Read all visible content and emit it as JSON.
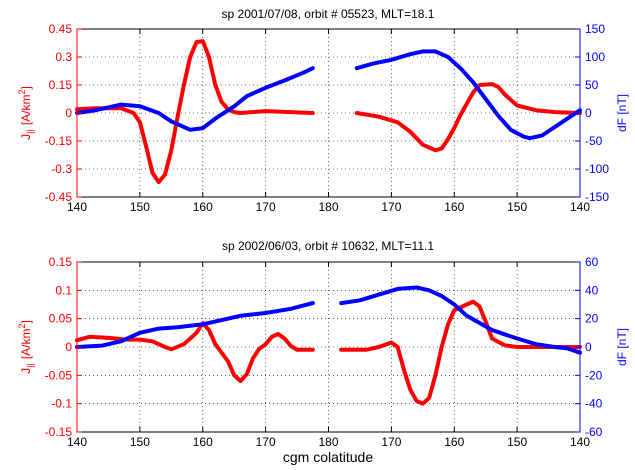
{
  "chart_data": [
    {
      "type": "line",
      "title": "sp 2001/07/08,  orbit # 05523, MLT=18.1",
      "xlabel": "",
      "ylabel_left": "J",
      "ylabel_left_sub": "||",
      "ylabel_left_unit_base": "[A/km",
      "ylabel_left_unit_sup": "2",
      "ylabel_left_unit_end": "]",
      "ylabel_right": "dF [nT]",
      "grid": "dotted",
      "x_ticks": [
        "140",
        "150",
        "160",
        "170",
        "180",
        "170",
        "160",
        "150",
        "140"
      ],
      "ylim_left": [
        -0.45,
        0.45
      ],
      "yticks_left": [
        "0.45",
        "0.3",
        "0.15",
        "0",
        "-0.15",
        "-0.3",
        "-0.45"
      ],
      "ylim_right": [
        -150,
        150
      ],
      "yticks_right": [
        "150",
        "100",
        "50",
        "0",
        "-50",
        "-100",
        "-150"
      ],
      "left_color": "#ff0000",
      "right_color": "#0000ff",
      "series": [
        {
          "axis": "left",
          "color": "#ff0000",
          "segments": [
            [
              [
                140,
                0.02
              ],
              [
                143,
                0.025
              ],
              [
                147,
                0.025
              ],
              [
                149,
                0.0
              ],
              [
                150,
                -0.05
              ],
              [
                151,
                -0.18
              ],
              [
                152,
                -0.32
              ],
              [
                153,
                -0.37
              ],
              [
                154,
                -0.33
              ],
              [
                155,
                -0.2
              ],
              [
                156,
                -0.02
              ],
              [
                157,
                0.15
              ],
              [
                158,
                0.3
              ],
              [
                159,
                0.38
              ],
              [
                160,
                0.385
              ],
              [
                161,
                0.3
              ],
              [
                162,
                0.15
              ],
              [
                163,
                0.06
              ],
              [
                164,
                0.02
              ],
              [
                165,
                0.005
              ],
              [
                166,
                0.0
              ],
              [
                170,
                0.01
              ],
              [
                174,
                0.005
              ],
              [
                177.5,
                0.0
              ]
            ],
            [
              [
                184.5,
                0.0
              ],
              [
                188,
                -0.02
              ],
              [
                191,
                -0.05
              ],
              [
                193,
                -0.1
              ],
              [
                195,
                -0.17
              ],
              [
                197,
                -0.2
              ],
              [
                198,
                -0.19
              ],
              [
                199,
                -0.14
              ],
              [
                200,
                -0.08
              ],
              [
                201,
                -0.01
              ],
              [
                202,
                0.05
              ],
              [
                203,
                0.11
              ],
              [
                204,
                0.15
              ],
              [
                206,
                0.155
              ],
              [
                207,
                0.14
              ],
              [
                208,
                0.1
              ],
              [
                210,
                0.04
              ],
              [
                213,
                0.015
              ],
              [
                216,
                0.005
              ],
              [
                220,
                0.0
              ]
            ]
          ]
        },
        {
          "axis": "right",
          "color": "#0000ff",
          "segments": [
            [
              [
                140,
                0
              ],
              [
                143,
                5
              ],
              [
                147,
                15
              ],
              [
                150,
                12
              ],
              [
                153,
                0
              ],
              [
                155,
                -15
              ],
              [
                158,
                -30
              ],
              [
                160,
                -27
              ],
              [
                162,
                -10
              ],
              [
                165,
                12
              ],
              [
                167,
                30
              ],
              [
                170,
                45
              ],
              [
                173,
                58
              ],
              [
                176,
                72
              ],
              [
                177.5,
                80
              ]
            ],
            [
              [
                184.5,
                80
              ],
              [
                187,
                88
              ],
              [
                190,
                95
              ],
              [
                193,
                105
              ],
              [
                195,
                110
              ],
              [
                197,
                110
              ],
              [
                199,
                100
              ],
              [
                201,
                80
              ],
              [
                203,
                55
              ],
              [
                205,
                25
              ],
              [
                207,
                -5
              ],
              [
                209,
                -30
              ],
              [
                211,
                -42
              ],
              [
                212,
                -45
              ],
              [
                214,
                -40
              ],
              [
                216,
                -25
              ],
              [
                218,
                -10
              ],
              [
                220,
                5
              ]
            ]
          ]
        }
      ]
    },
    {
      "type": "line",
      "title": "sp 2002/06/03,  orbit # 10632, MLT=11.1",
      "xlabel": "cgm colatitude",
      "ylabel_left": "J",
      "ylabel_left_sub": "||",
      "ylabel_left_unit_base": "[A/km",
      "ylabel_left_unit_sup": "2",
      "ylabel_left_unit_end": "]",
      "ylabel_right": "dF [nT]",
      "grid": "dotted",
      "x_ticks": [
        "140",
        "150",
        "160",
        "170",
        "180",
        "170",
        "160",
        "150",
        "140"
      ],
      "ylim_left": [
        -0.15,
        0.15
      ],
      "yticks_left": [
        "0.15",
        "0.1",
        "0.05",
        "0",
        "-0.05",
        "-0.1",
        "-0.15"
      ],
      "ylim_right": [
        -60,
        60
      ],
      "yticks_right": [
        "60",
        "40",
        "20",
        "0",
        "-20",
        "-40",
        "-60"
      ],
      "left_color": "#ff0000",
      "right_color": "#0000ff",
      "series": [
        {
          "axis": "left",
          "color": "#ff0000",
          "segments": [
            [
              [
                140,
                0.012
              ],
              [
                142,
                0.018
              ],
              [
                145,
                0.016
              ],
              [
                148,
                0.013
              ],
              [
                150,
                0.013
              ],
              [
                152,
                0.01
              ],
              [
                154,
                0.0
              ],
              [
                155,
                -0.004
              ],
              [
                157,
                0.005
              ],
              [
                159,
                0.025
              ],
              [
                160,
                0.042
              ],
              [
                161,
                0.03
              ],
              [
                162,
                0.005
              ],
              [
                163,
                -0.01
              ],
              [
                164,
                -0.025
              ],
              [
                165,
                -0.05
              ],
              [
                166,
                -0.06
              ],
              [
                167,
                -0.048
              ],
              [
                168,
                -0.02
              ],
              [
                169,
                -0.003
              ],
              [
                170,
                0.005
              ],
              [
                171,
                0.018
              ],
              [
                172,
                0.023
              ],
              [
                173,
                0.015
              ],
              [
                174,
                0.002
              ],
              [
                175,
                -0.005
              ],
              [
                177.5,
                -0.005
              ]
            ],
            [
              [
                182,
                -0.005
              ],
              [
                186,
                -0.005
              ],
              [
                188,
                0.0
              ],
              [
                190,
                0.008
              ],
              [
                191,
                0.0
              ],
              [
                192,
                -0.04
              ],
              [
                193,
                -0.075
              ],
              [
                194,
                -0.095
              ],
              [
                195,
                -0.1
              ],
              [
                196,
                -0.09
              ],
              [
                197,
                -0.05
              ],
              [
                198,
                0.0
              ],
              [
                199,
                0.04
              ],
              [
                200,
                0.065
              ],
              [
                202,
                0.075
              ],
              [
                203,
                0.08
              ],
              [
                204,
                0.072
              ],
              [
                205,
                0.045
              ],
              [
                206,
                0.015
              ],
              [
                208,
                0.003
              ],
              [
                210,
                0.0
              ],
              [
                220,
                0.0
              ]
            ]
          ]
        },
        {
          "axis": "right",
          "color": "#0000ff",
          "segments": [
            [
              [
                140,
                0
              ],
              [
                144,
                1
              ],
              [
                147,
                4
              ],
              [
                150,
                10
              ],
              [
                153,
                13
              ],
              [
                156,
                14
              ],
              [
                158,
                15
              ],
              [
                160,
                16
              ],
              [
                163,
                19
              ],
              [
                166,
                22
              ],
              [
                170,
                24
              ],
              [
                174,
                27
              ],
              [
                177.5,
                31
              ]
            ],
            [
              [
                182,
                31
              ],
              [
                185,
                33
              ],
              [
                188,
                37
              ],
              [
                191,
                41
              ],
              [
                194,
                42
              ],
              [
                196,
                40
              ],
              [
                198,
                36
              ],
              [
                200,
                30
              ],
              [
                202,
                22
              ],
              [
                204,
                17
              ],
              [
                206,
                12
              ],
              [
                208,
                9
              ],
              [
                210,
                6
              ],
              [
                213,
                2
              ],
              [
                216,
                0
              ],
              [
                218,
                -1
              ],
              [
                220,
                -4
              ]
            ]
          ]
        }
      ]
    }
  ]
}
